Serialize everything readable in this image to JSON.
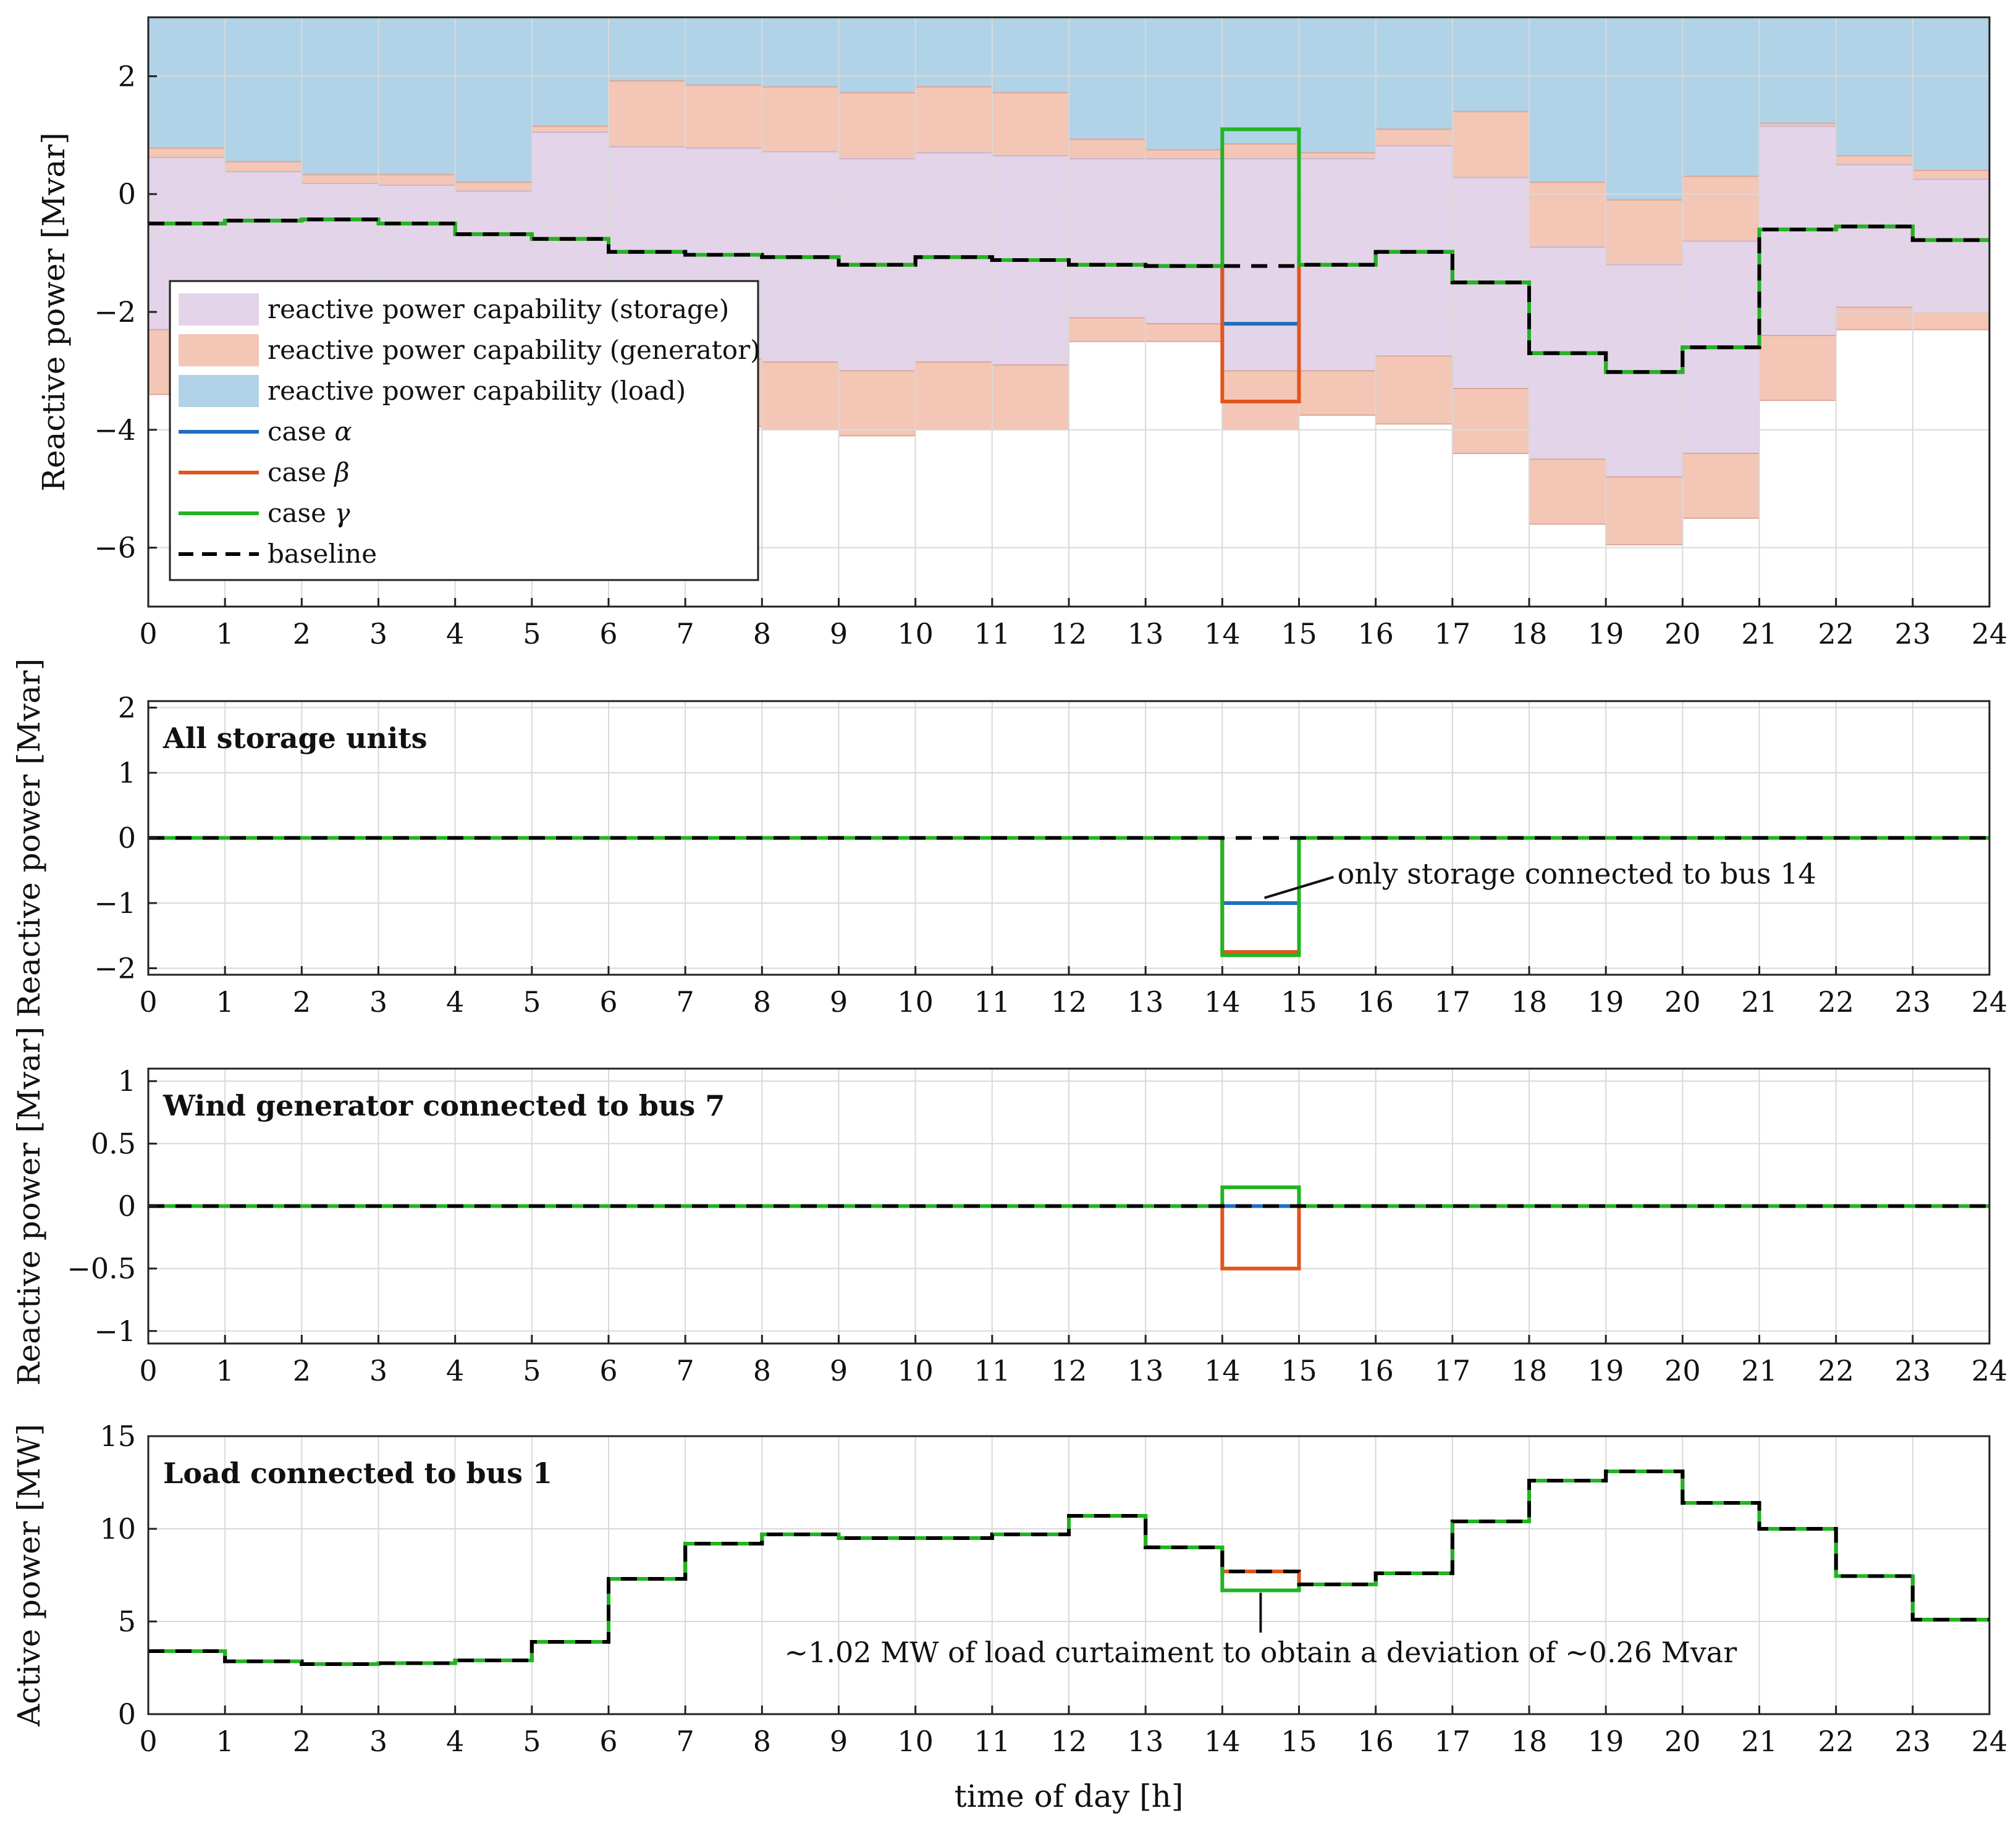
{
  "colors": {
    "storage": "#e3d4e9",
    "generator": "#f4c6b6",
    "load": "#b1d3e8",
    "alpha": "#1f6fbf",
    "beta": "#e0561c",
    "gamma": "#22b422",
    "baseline": "#000000"
  },
  "xlabel": "time of day [h]",
  "chart_data": [
    {
      "type": "area",
      "id": "p1",
      "title": "",
      "ylabel": "Reactive power [Mvar]",
      "xlim": [
        0,
        24
      ],
      "ylim": [
        -7,
        3
      ],
      "xticks": [
        "0",
        "1",
        "2",
        "3",
        "4",
        "5",
        "6",
        "7",
        "8",
        "9",
        "10",
        "11",
        "12",
        "13",
        "14",
        "15",
        "16",
        "17",
        "18",
        "19",
        "20",
        "21",
        "22",
        "23",
        "24"
      ],
      "yticks": [
        {
          "v": 2,
          "label": "2"
        },
        {
          "v": 0,
          "label": "0"
        },
        {
          "v": -2,
          "label": "−2"
        },
        {
          "v": -4,
          "label": "−4"
        },
        {
          "v": -6,
          "label": "−6"
        }
      ],
      "legend": {
        "position": "upper-left",
        "entries": [
          {
            "key": "storage",
            "kind": "patch",
            "label": "reactive power capability (storage)"
          },
          {
            "key": "generator",
            "kind": "patch",
            "label": "reactive power capability (generator)"
          },
          {
            "key": "load",
            "kind": "patch",
            "label": "reactive power capability (load)"
          },
          {
            "key": "alpha",
            "kind": "line",
            "label": "case ",
            "sym": "α"
          },
          {
            "key": "beta",
            "kind": "line",
            "label": "case ",
            "sym": "β"
          },
          {
            "key": "gamma",
            "kind": "line",
            "label": "case ",
            "sym": "γ"
          },
          {
            "key": "baseline",
            "kind": "dash",
            "label": "baseline"
          }
        ]
      },
      "bands": {
        "load_top": 3,
        "gen_top": [
          0.78,
          0.55,
          0.33,
          0.33,
          0.2,
          1.15,
          1.92,
          1.85,
          1.82,
          1.72,
          1.82,
          1.72,
          0.93,
          0.75,
          0.85,
          0.7,
          1.1,
          1.4,
          0.2,
          -0.1,
          0.3,
          1.2,
          0.65,
          0.4
        ],
        "stor_top": [
          0.62,
          0.38,
          0.18,
          0.15,
          0.05,
          1.05,
          0.8,
          0.78,
          0.72,
          0.6,
          0.7,
          0.65,
          0.6,
          0.6,
          0.6,
          0.6,
          0.82,
          0.28,
          -0.9,
          -1.2,
          -0.8,
          1.15,
          0.5,
          0.25
        ],
        "stor_bottom": [
          -2.3,
          -2.7,
          -2.6,
          -2.65,
          -2.7,
          -2.75,
          -2.85,
          -2.8,
          -2.85,
          -3.0,
          -2.85,
          -2.9,
          -2.1,
          -2.2,
          -3.0,
          -3.0,
          -2.75,
          -3.3,
          -4.5,
          -4.8,
          -4.4,
          -2.4,
          -1.92,
          -2.0
        ],
        "gen_bottom": [
          -3.4,
          -3.7,
          -3.7,
          -3.75,
          -3.8,
          -3.85,
          -3.9,
          -3.95,
          -4.0,
          -4.1,
          -4.0,
          -4.0,
          -2.5,
          -2.5,
          -4.0,
          -3.75,
          -3.9,
          -4.4,
          -5.6,
          -5.95,
          -5.5,
          -3.5,
          -2.3,
          -2.3
        ]
      },
      "series": [
        {
          "name": "baseline",
          "values": [
            -0.5,
            -0.45,
            -0.43,
            -0.5,
            -0.68,
            -0.76,
            -0.98,
            -1.03,
            -1.07,
            -1.2,
            -1.07,
            -1.12,
            -1.2,
            -1.22,
            -1.22,
            -1.2,
            -0.98,
            -1.5,
            -2.7,
            -3.02,
            -2.6,
            -0.6,
            -0.55,
            -0.78
          ]
        },
        {
          "name": "alpha",
          "values": [
            -0.5,
            -0.45,
            -0.43,
            -0.5,
            -0.68,
            -0.76,
            -0.98,
            -1.03,
            -1.07,
            -1.2,
            -1.07,
            -1.12,
            -1.2,
            -1.22,
            -2.2,
            -1.2,
            -0.98,
            -1.5,
            -2.7,
            -3.02,
            -2.6,
            -0.6,
            -0.55,
            -0.78
          ]
        },
        {
          "name": "beta",
          "values": [
            -0.5,
            -0.45,
            -0.43,
            -0.5,
            -0.68,
            -0.76,
            -0.98,
            -1.03,
            -1.07,
            -1.2,
            -1.07,
            -1.12,
            -1.2,
            -1.22,
            -3.52,
            -1.2,
            -0.98,
            -1.5,
            -2.7,
            -3.02,
            -2.6,
            -0.6,
            -0.55,
            -0.78
          ]
        },
        {
          "name": "gamma",
          "values": [
            -0.5,
            -0.45,
            -0.43,
            -0.5,
            -0.68,
            -0.76,
            -0.98,
            -1.03,
            -1.07,
            -1.2,
            -1.07,
            -1.12,
            -1.2,
            -1.22,
            1.1,
            -1.2,
            -0.98,
            -1.5,
            -2.7,
            -3.02,
            -2.6,
            -0.6,
            -0.55,
            -0.78
          ]
        }
      ]
    },
    {
      "type": "line",
      "id": "p2",
      "title": "All storage units",
      "ylabel": "Reactive power [Mvar]",
      "xlim": [
        0,
        24
      ],
      "ylim": [
        -2.1,
        2.1
      ],
      "xticks": [
        "0",
        "1",
        "2",
        "3",
        "4",
        "5",
        "6",
        "7",
        "8",
        "9",
        "10",
        "11",
        "12",
        "13",
        "14",
        "15",
        "16",
        "17",
        "18",
        "19",
        "20",
        "21",
        "22",
        "23",
        "24"
      ],
      "yticks": [
        {
          "v": 2,
          "label": "2"
        },
        {
          "v": 1,
          "label": "1"
        },
        {
          "v": 0,
          "label": "0"
        },
        {
          "v": -1,
          "label": "−1"
        },
        {
          "v": -2,
          "label": "−2"
        }
      ],
      "annotation": {
        "text": "only storage connected to bus 14",
        "x": 14.5,
        "y": -1.0,
        "tx": 15.5,
        "ty": -0.55
      },
      "series": [
        {
          "name": "baseline",
          "values": [
            0,
            0,
            0,
            0,
            0,
            0,
            0,
            0,
            0,
            0,
            0,
            0,
            0,
            0,
            0,
            0,
            0,
            0,
            0,
            0,
            0,
            0,
            0,
            0
          ]
        },
        {
          "name": "alpha",
          "values": [
            0,
            0,
            0,
            0,
            0,
            0,
            0,
            0,
            0,
            0,
            0,
            0,
            0,
            0,
            -1.0,
            0,
            0,
            0,
            0,
            0,
            0,
            0,
            0,
            0
          ]
        },
        {
          "name": "beta",
          "values": [
            0,
            0,
            0,
            0,
            0,
            0,
            0,
            0,
            0,
            0,
            0,
            0,
            0,
            0,
            -1.75,
            0,
            0,
            0,
            0,
            0,
            0,
            0,
            0,
            0
          ]
        },
        {
          "name": "gamma",
          "values": [
            0,
            0,
            0,
            0,
            0,
            0,
            0,
            0,
            0,
            0,
            0,
            0,
            0,
            0,
            -1.8,
            0,
            0,
            0,
            0,
            0,
            0,
            0,
            0,
            0
          ]
        }
      ]
    },
    {
      "type": "line",
      "id": "p3",
      "title": "Wind generator connected to bus 7",
      "ylabel": "Reactive power [Mvar]",
      "xlim": [
        0,
        24
      ],
      "ylim": [
        -1.1,
        1.1
      ],
      "xticks": [
        "0",
        "1",
        "2",
        "3",
        "4",
        "5",
        "6",
        "7",
        "8",
        "9",
        "10",
        "11",
        "12",
        "13",
        "14",
        "15",
        "16",
        "17",
        "18",
        "19",
        "20",
        "21",
        "22",
        "23",
        "24"
      ],
      "yticks": [
        {
          "v": 1,
          "label": "1"
        },
        {
          "v": 0.5,
          "label": "0.5"
        },
        {
          "v": 0,
          "label": "0"
        },
        {
          "v": -0.5,
          "label": "−0.5"
        },
        {
          "v": -1,
          "label": "−1"
        }
      ],
      "series": [
        {
          "name": "baseline",
          "values": [
            0,
            0,
            0,
            0,
            0,
            0,
            0,
            0,
            0,
            0,
            0,
            0,
            0,
            0,
            0,
            0,
            0,
            0,
            0,
            0,
            0,
            0,
            0,
            0
          ]
        },
        {
          "name": "alpha",
          "values": [
            0,
            0,
            0,
            0,
            0,
            0,
            0,
            0,
            0,
            0,
            0,
            0,
            0,
            0,
            0,
            0,
            0,
            0,
            0,
            0,
            0,
            0,
            0,
            0
          ]
        },
        {
          "name": "beta",
          "values": [
            0,
            0,
            0,
            0,
            0,
            0,
            0,
            0,
            0,
            0,
            0,
            0,
            0,
            0,
            -0.5,
            0,
            0,
            0,
            0,
            0,
            0,
            0,
            0,
            0
          ]
        },
        {
          "name": "gamma",
          "values": [
            0,
            0,
            0,
            0,
            0,
            0,
            0,
            0,
            0,
            0,
            0,
            0,
            0,
            0,
            0.15,
            0,
            0,
            0,
            0,
            0,
            0,
            0,
            0,
            0
          ]
        }
      ]
    },
    {
      "type": "line",
      "id": "p4",
      "title": "Load connected to bus 1",
      "ylabel": "Active power [MW]",
      "xlim": [
        0,
        24
      ],
      "ylim": [
        0,
        15
      ],
      "xticks": [
        "0",
        "1",
        "2",
        "3",
        "4",
        "5",
        "6",
        "7",
        "8",
        "9",
        "10",
        "11",
        "12",
        "13",
        "14",
        "15",
        "16",
        "17",
        "18",
        "19",
        "20",
        "21",
        "22",
        "23",
        "24"
      ],
      "yticks": [
        {
          "v": 15,
          "label": "15"
        },
        {
          "v": 10,
          "label": "10"
        },
        {
          "v": 5,
          "label": "5"
        },
        {
          "v": 0,
          "label": "0"
        }
      ],
      "annotation": {
        "text": "~1.02 MW of load curtaiment to obtain a deviation of ~0.26 Mvar",
        "x": 14.5,
        "y": 6.6,
        "tx": 14.5,
        "ty": 3.2
      },
      "series": [
        {
          "name": "baseline",
          "values": [
            3.4,
            2.85,
            2.7,
            2.75,
            2.9,
            3.9,
            7.3,
            9.2,
            9.7,
            9.5,
            9.5,
            9.7,
            10.7,
            9.0,
            7.7,
            7.0,
            7.6,
            10.4,
            12.6,
            13.1,
            11.4,
            10.0,
            7.45,
            5.1
          ]
        },
        {
          "name": "alpha",
          "values": [
            3.4,
            2.85,
            2.7,
            2.75,
            2.9,
            3.9,
            7.3,
            9.2,
            9.7,
            9.5,
            9.5,
            9.7,
            10.7,
            9.0,
            7.7,
            7.0,
            7.6,
            10.4,
            12.6,
            13.1,
            11.4,
            10.0,
            7.45,
            5.1
          ]
        },
        {
          "name": "beta",
          "values": [
            3.4,
            2.85,
            2.7,
            2.75,
            2.9,
            3.9,
            7.3,
            9.2,
            9.7,
            9.5,
            9.5,
            9.7,
            10.7,
            9.0,
            7.7,
            7.0,
            7.6,
            10.4,
            12.6,
            13.1,
            11.4,
            10.0,
            7.45,
            5.1
          ]
        },
        {
          "name": "gamma",
          "values": [
            3.4,
            2.85,
            2.7,
            2.75,
            2.9,
            3.9,
            7.3,
            9.2,
            9.7,
            9.5,
            9.5,
            9.7,
            10.7,
            9.0,
            6.68,
            7.0,
            7.6,
            10.4,
            12.6,
            13.1,
            11.4,
            10.0,
            7.45,
            5.1
          ]
        }
      ]
    }
  ]
}
